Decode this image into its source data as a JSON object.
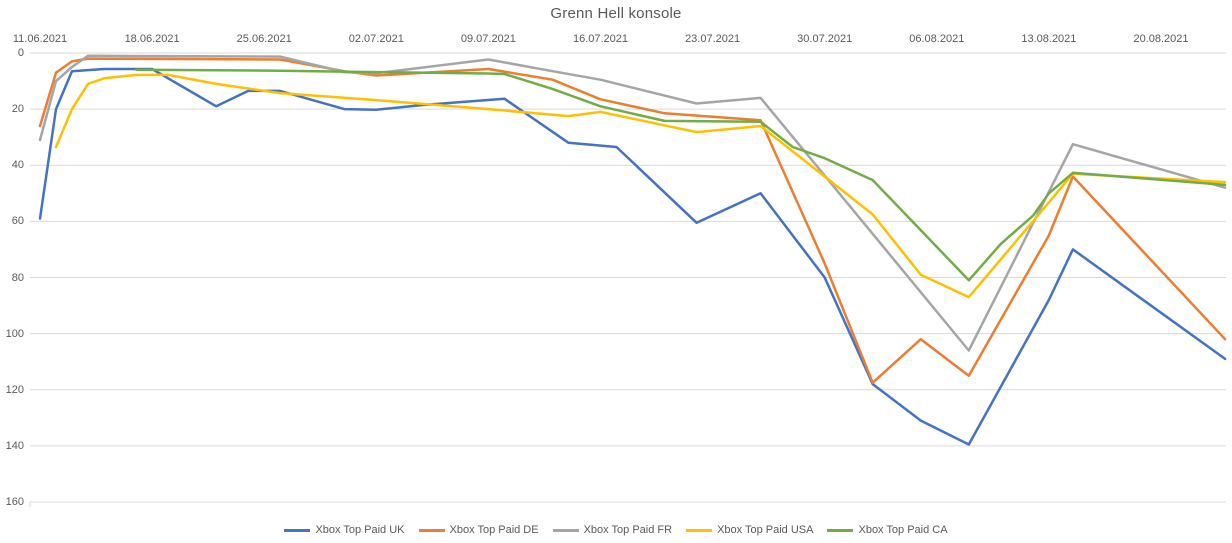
{
  "chart_data": {
    "type": "line",
    "title": "Grenn Hell konsole",
    "x_tick_labels": [
      "11.06.2021",
      "18.06.2021",
      "25.06.2021",
      "02.07.2021",
      "09.07.2021",
      "16.07.2021",
      "23.07.2021",
      "30.07.2021",
      "06.08.2021",
      "13.08.2021",
      "20.08.2021"
    ],
    "x_tick_interval_days": 7,
    "x_is_days_since_first_date": true,
    "y_ticks": [
      0,
      20,
      40,
      60,
      80,
      100,
      120,
      140,
      160
    ],
    "y_range": [
      0,
      160
    ],
    "y_increases_downward": true,
    "grid": true,
    "legend_position": "bottom",
    "text_color": "#595959",
    "gridline_color": "#D9D9D9",
    "series": [
      {
        "name": "Xbox Top Paid UK",
        "color": "#4472C4",
        "points": [
          [
            0,
            59
          ],
          [
            1,
            20
          ],
          [
            2,
            6.5
          ],
          [
            4,
            5.7
          ],
          [
            7,
            5.7
          ],
          [
            11,
            19
          ],
          [
            13,
            13.5
          ],
          [
            15,
            13.5
          ],
          [
            19,
            20
          ],
          [
            21,
            20.2
          ],
          [
            24,
            18.5
          ],
          [
            29,
            16.3
          ],
          [
            33,
            32
          ],
          [
            36,
            33.5
          ],
          [
            41,
            60.5
          ],
          [
            45,
            50
          ],
          [
            49,
            80
          ],
          [
            52,
            118
          ],
          [
            55,
            131
          ],
          [
            58,
            139.5
          ],
          [
            63,
            88
          ],
          [
            64.5,
            70
          ],
          [
            74,
            109
          ]
        ]
      },
      {
        "name": "Xbox Top Paid DE",
        "color": "#ED7D31",
        "points": [
          [
            0,
            26
          ],
          [
            1,
            7
          ],
          [
            2,
            3
          ],
          [
            3,
            2
          ],
          [
            15,
            2.3
          ],
          [
            19,
            6.5
          ],
          [
            21,
            8
          ],
          [
            28,
            5.7
          ],
          [
            32,
            9.5
          ],
          [
            35,
            16.5
          ],
          [
            39,
            21.5
          ],
          [
            45,
            24
          ],
          [
            49,
            75
          ],
          [
            52,
            117.5
          ],
          [
            55,
            102
          ],
          [
            58,
            115
          ],
          [
            63,
            65
          ],
          [
            64.5,
            44
          ],
          [
            74,
            102
          ]
        ]
      },
      {
        "name": "Xbox Top Paid FR",
        "color": "#A5A5A5",
        "points": [
          [
            0,
            31
          ],
          [
            1,
            10
          ],
          [
            2,
            5
          ],
          [
            3,
            1
          ],
          [
            15,
            1.3
          ],
          [
            19,
            6.8
          ],
          [
            21,
            7.2
          ],
          [
            28,
            2.3
          ],
          [
            32,
            6.5
          ],
          [
            35,
            9.5
          ],
          [
            41,
            18
          ],
          [
            45,
            16
          ],
          [
            58,
            106
          ],
          [
            64.5,
            32.5
          ],
          [
            74,
            48
          ]
        ]
      },
      {
        "name": "Xbox Top Paid USA",
        "color": "#FFC000",
        "points": [
          [
            1,
            33.5
          ],
          [
            2,
            20
          ],
          [
            3,
            11
          ],
          [
            4,
            9
          ],
          [
            6,
            7.8
          ],
          [
            8,
            7.8
          ],
          [
            11,
            11
          ],
          [
            15,
            14.3
          ],
          [
            21,
            16.8
          ],
          [
            28,
            20
          ],
          [
            33,
            22.5
          ],
          [
            35,
            21
          ],
          [
            41,
            28.2
          ],
          [
            45,
            26
          ],
          [
            52,
            57.5
          ],
          [
            55,
            79
          ],
          [
            58,
            87
          ],
          [
            62,
            60
          ],
          [
            64.5,
            43
          ],
          [
            74,
            46
          ]
        ]
      },
      {
        "name": "Xbox Top Paid CA",
        "color": "#70AD47",
        "points": [
          [
            6,
            6
          ],
          [
            15,
            6.3
          ],
          [
            21,
            6.8
          ],
          [
            28,
            7.3
          ],
          [
            29,
            7.5
          ],
          [
            32,
            12.8
          ],
          [
            35,
            19
          ],
          [
            39,
            24.2
          ],
          [
            45,
            24.5
          ],
          [
            47,
            33.5
          ],
          [
            49,
            37.5
          ],
          [
            52,
            45.3
          ],
          [
            58,
            81
          ],
          [
            60,
            68
          ],
          [
            62,
            58
          ],
          [
            63,
            50
          ],
          [
            64.5,
            42.7
          ],
          [
            74,
            47
          ]
        ]
      }
    ]
  }
}
